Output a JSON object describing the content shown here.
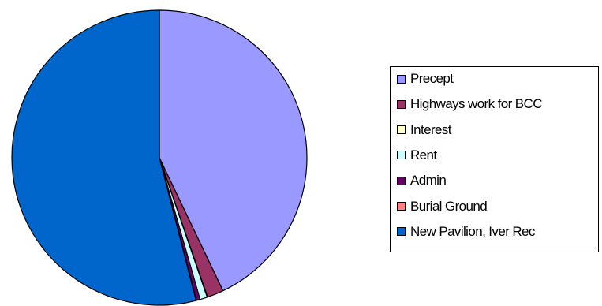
{
  "chart_data": {
    "type": "pie",
    "title": "",
    "slices": [
      {
        "label": "Precept",
        "value": 42.9,
        "color": "#9999ff"
      },
      {
        "label": "Highways work for BCC",
        "value": 1.8,
        "color": "#993366"
      },
      {
        "label": "Interest",
        "value": 0.05,
        "color": "#ffffcc"
      },
      {
        "label": "Rent",
        "value": 0.8,
        "color": "#ccffff"
      },
      {
        "label": "Admin",
        "value": 0.4,
        "color": "#660066"
      },
      {
        "label": "Burial Ground",
        "value": 0.05,
        "color": "#ff8080"
      },
      {
        "label": "New Pavilion, Iver Rec",
        "value": 54.0,
        "color": "#0066cc"
      }
    ],
    "start_angle_deg": 0,
    "direction": "clockwise",
    "legend_position": "right"
  }
}
